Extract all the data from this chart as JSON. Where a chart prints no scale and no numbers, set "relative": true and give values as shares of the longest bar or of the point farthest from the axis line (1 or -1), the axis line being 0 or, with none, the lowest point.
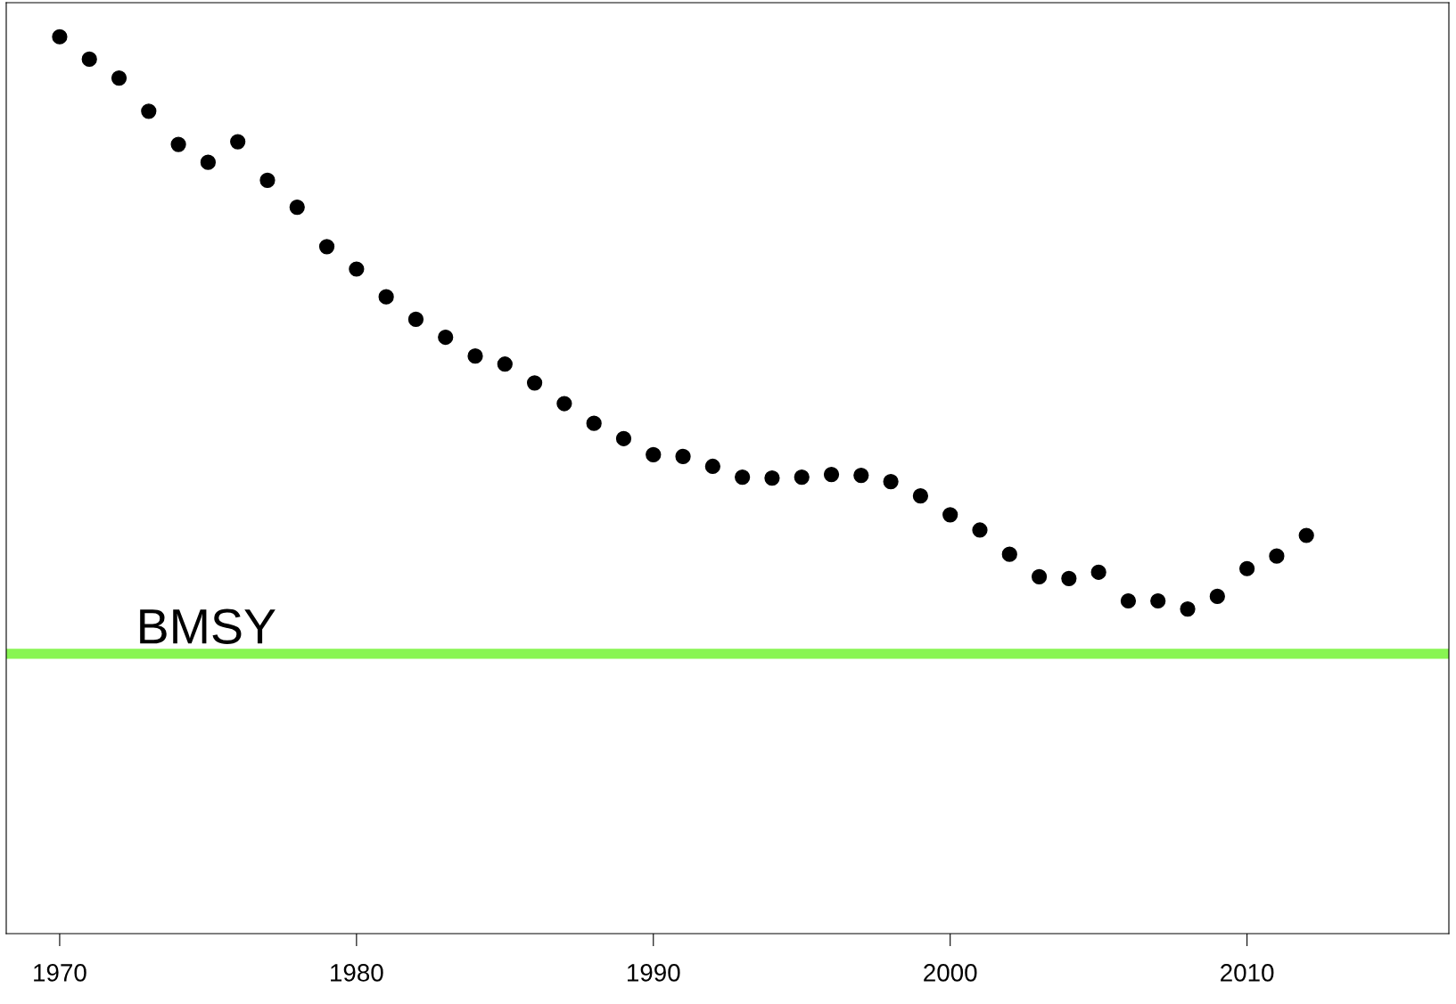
{
  "chart_data": {
    "type": "scatter",
    "relative": true,
    "marker": "circle",
    "x": [
      1970,
      1971,
      1972,
      1973,
      1974,
      1975,
      1976,
      1977,
      1978,
      1979,
      1980,
      1981,
      1982,
      1983,
      1984,
      1985,
      1986,
      1987,
      1988,
      1989,
      1990,
      1991,
      1992,
      1993,
      1994,
      1995,
      1996,
      1997,
      1998,
      1999,
      2000,
      2001,
      2002,
      2003,
      2004,
      2005,
      2006,
      2007,
      2008,
      2009,
      2010,
      2011,
      2012
    ],
    "series": [
      {
        "color": "#000000",
        "values": [
          1.0,
          0.975,
          0.954,
          0.917,
          0.88,
          0.86,
          0.883,
          0.84,
          0.81,
          0.766,
          0.741,
          0.71,
          0.685,
          0.665,
          0.644,
          0.635,
          0.614,
          0.591,
          0.569,
          0.552,
          0.534,
          0.532,
          0.521,
          0.509,
          0.508,
          0.509,
          0.512,
          0.511,
          0.504,
          0.488,
          0.467,
          0.45,
          0.423,
          0.398,
          0.396,
          0.403,
          0.371,
          0.371,
          0.362,
          0.376,
          0.407,
          0.421,
          0.444
        ]
      }
    ],
    "xlim": [
      1968.2,
      2016.8
    ],
    "xticks": [
      1970,
      1980,
      1990,
      2000,
      2010
    ],
    "ref_lines": [
      {
        "axis": "y",
        "value": 0.312,
        "label": "BMSY",
        "color": "#88f552"
      }
    ],
    "grid": false,
    "legend": false,
    "tick_labels": "x"
  }
}
